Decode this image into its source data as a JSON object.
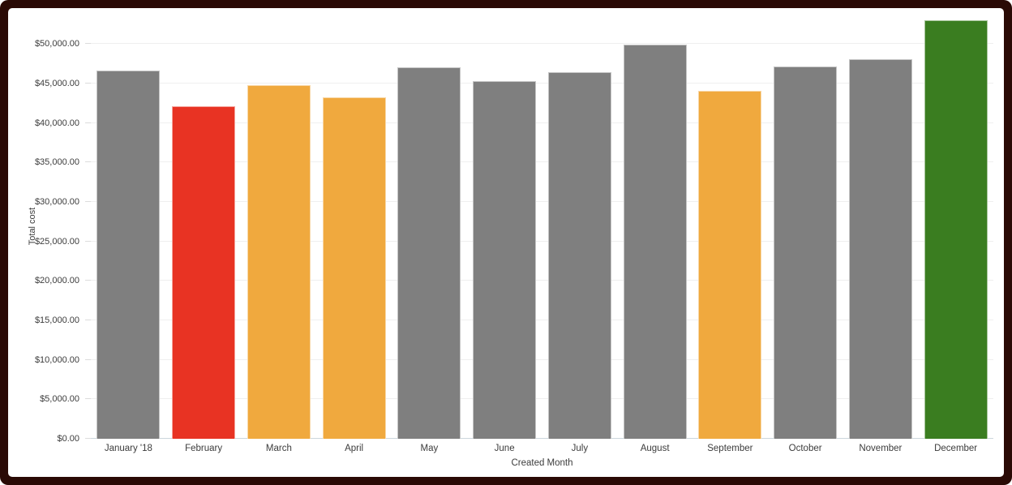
{
  "frame": {
    "border_color": "#2a0a05",
    "card_background": "#ffffff"
  },
  "chart_data": {
    "type": "bar",
    "title": "",
    "xlabel": "Created Month",
    "ylabel": "Total cost",
    "categories": [
      "January '18",
      "February",
      "March",
      "April",
      "May",
      "June",
      "July",
      "August",
      "September",
      "October",
      "November",
      "December"
    ],
    "values": [
      46600,
      42100,
      44800,
      43200,
      47000,
      45300,
      46400,
      49900,
      44100,
      47100,
      48100,
      53000
    ],
    "bar_colors": [
      "#7f7f7f",
      "#e83323",
      "#f0a93e",
      "#f0a93e",
      "#7f7f7f",
      "#7f7f7f",
      "#7f7f7f",
      "#7f7f7f",
      "#f0a93e",
      "#7f7f7f",
      "#7f7f7f",
      "#3a7d20"
    ],
    "color_legend": {
      "default_gray": "#7f7f7f",
      "alert_red": "#e83323",
      "warning_orange": "#f0a93e",
      "good_green": "#3a7d20"
    },
    "y_ticks": [
      {
        "label": "$50,000.00",
        "value": 50000
      },
      {
        "label": "$45,000.00",
        "value": 45000
      },
      {
        "label": "$40,000.00",
        "value": 40000
      },
      {
        "label": "$35,000.00",
        "value": 35000
      },
      {
        "label": "$30,000.00",
        "value": 30000
      },
      {
        "label": "$25,000.00",
        "value": 25000
      },
      {
        "label": "$20,000.00",
        "value": 20000
      },
      {
        "label": "$15,000.00",
        "value": 15000
      },
      {
        "label": "$10,000.00",
        "value": 10000
      },
      {
        "label": "$5,000.00",
        "value": 5000
      },
      {
        "label": "$0.00",
        "value": 0
      }
    ],
    "ylim": [
      0,
      53000
    ],
    "grid": "horizontal",
    "legend_position": "none"
  }
}
